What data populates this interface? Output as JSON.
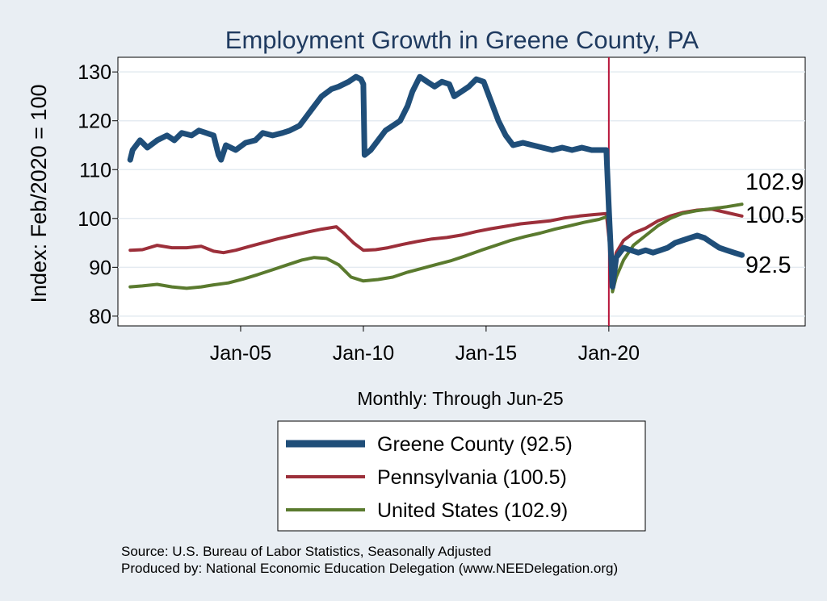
{
  "chart_data": {
    "type": "line",
    "title": "Employment Growth in Greene  County, PA",
    "ylabel": "Index: Feb/2020 = 100",
    "xlabel": "Monthly: Through Jun-25",
    "ylim": [
      78,
      133
    ],
    "yticks": [
      80,
      90,
      100,
      110,
      120,
      130
    ],
    "xlim": [
      2000.0,
      2028.0
    ],
    "xticks": [
      {
        "value": 2005.0,
        "label": "Jan-05"
      },
      {
        "value": 2010.0,
        "label": "Jan-10"
      },
      {
        "value": 2015.0,
        "label": "Jan-15"
      },
      {
        "value": 2020.0,
        "label": "Jan-20"
      }
    ],
    "reference_line_x": 2020.0,
    "reference_line_color": "#b8153a",
    "series": [
      {
        "name": "Greene  County (92.5)",
        "color": "#1f4e79",
        "width": 7,
        "end_label": "92.5",
        "points": [
          [
            2000.5,
            112
          ],
          [
            2000.6,
            114
          ],
          [
            2000.9,
            116
          ],
          [
            2001.2,
            114.5
          ],
          [
            2001.6,
            116
          ],
          [
            2002.0,
            117
          ],
          [
            2002.3,
            116
          ],
          [
            2002.6,
            117.5
          ],
          [
            2003.0,
            117
          ],
          [
            2003.3,
            118
          ],
          [
            2003.6,
            117.5
          ],
          [
            2003.9,
            117
          ],
          [
            2004.1,
            113
          ],
          [
            2004.2,
            112
          ],
          [
            2004.4,
            115
          ],
          [
            2004.8,
            114
          ],
          [
            2005.2,
            115.5
          ],
          [
            2005.6,
            116
          ],
          [
            2005.9,
            117.5
          ],
          [
            2006.3,
            117
          ],
          [
            2006.7,
            117.5
          ],
          [
            2007.0,
            118
          ],
          [
            2007.4,
            119
          ],
          [
            2007.7,
            121
          ],
          [
            2008.0,
            123
          ],
          [
            2008.3,
            125
          ],
          [
            2008.7,
            126.5
          ],
          [
            2009.0,
            127
          ],
          [
            2009.4,
            128
          ],
          [
            2009.7,
            129
          ],
          [
            2009.9,
            128.5
          ],
          [
            2010.0,
            127.5
          ],
          [
            2010.05,
            113
          ],
          [
            2010.3,
            114
          ],
          [
            2010.6,
            116
          ],
          [
            2010.9,
            118
          ],
          [
            2011.2,
            119
          ],
          [
            2011.5,
            120
          ],
          [
            2011.8,
            123
          ],
          [
            2012.0,
            126
          ],
          [
            2012.3,
            129
          ],
          [
            2012.6,
            128
          ],
          [
            2012.9,
            127
          ],
          [
            2013.2,
            128
          ],
          [
            2013.5,
            127.5
          ],
          [
            2013.7,
            125
          ],
          [
            2014.0,
            126
          ],
          [
            2014.3,
            127
          ],
          [
            2014.6,
            128.5
          ],
          [
            2014.9,
            128
          ],
          [
            2015.2,
            124
          ],
          [
            2015.5,
            120
          ],
          [
            2015.8,
            117
          ],
          [
            2016.1,
            115
          ],
          [
            2016.5,
            115.5
          ],
          [
            2016.9,
            115
          ],
          [
            2017.3,
            114.5
          ],
          [
            2017.7,
            114
          ],
          [
            2018.1,
            114.5
          ],
          [
            2018.5,
            114
          ],
          [
            2018.9,
            114.5
          ],
          [
            2019.3,
            114
          ],
          [
            2019.7,
            114
          ],
          [
            2019.9,
            114
          ],
          [
            2020.0,
            102
          ],
          [
            2020.15,
            86
          ],
          [
            2020.3,
            92
          ],
          [
            2020.6,
            94
          ],
          [
            2020.9,
            93.5
          ],
          [
            2021.2,
            93
          ],
          [
            2021.5,
            93.5
          ],
          [
            2021.8,
            93
          ],
          [
            2022.1,
            93.5
          ],
          [
            2022.4,
            94
          ],
          [
            2022.7,
            95
          ],
          [
            2023.0,
            95.5
          ],
          [
            2023.3,
            96
          ],
          [
            2023.6,
            96.5
          ],
          [
            2023.9,
            96
          ],
          [
            2024.2,
            95
          ],
          [
            2024.5,
            94
          ],
          [
            2024.8,
            93.5
          ],
          [
            2025.1,
            93
          ],
          [
            2025.42,
            92.5
          ]
        ]
      },
      {
        "name": "Pennsylvania (100.5)",
        "color": "#9c2f3a",
        "width": 4,
        "end_label": "100.5",
        "points": [
          [
            2000.5,
            93.5
          ],
          [
            2001.0,
            93.6
          ],
          [
            2001.6,
            94.5
          ],
          [
            2002.2,
            94
          ],
          [
            2002.8,
            94
          ],
          [
            2003.4,
            94.3
          ],
          [
            2003.9,
            93.3
          ],
          [
            2004.3,
            93
          ],
          [
            2004.8,
            93.5
          ],
          [
            2005.3,
            94.2
          ],
          [
            2005.9,
            95
          ],
          [
            2006.5,
            95.8
          ],
          [
            2007.1,
            96.5
          ],
          [
            2007.7,
            97.2
          ],
          [
            2008.3,
            97.8
          ],
          [
            2008.9,
            98.3
          ],
          [
            2009.2,
            97
          ],
          [
            2009.6,
            95
          ],
          [
            2010.0,
            93.5
          ],
          [
            2010.5,
            93.6
          ],
          [
            2011.0,
            94
          ],
          [
            2011.6,
            94.7
          ],
          [
            2012.2,
            95.3
          ],
          [
            2012.8,
            95.8
          ],
          [
            2013.4,
            96.1
          ],
          [
            2014.0,
            96.6
          ],
          [
            2014.6,
            97.3
          ],
          [
            2015.2,
            97.9
          ],
          [
            2015.8,
            98.4
          ],
          [
            2016.4,
            98.9
          ],
          [
            2017.0,
            99.2
          ],
          [
            2017.6,
            99.5
          ],
          [
            2018.2,
            100.1
          ],
          [
            2018.8,
            100.5
          ],
          [
            2019.4,
            100.8
          ],
          [
            2019.9,
            101
          ],
          [
            2020.15,
            89
          ],
          [
            2020.3,
            93
          ],
          [
            2020.6,
            95.5
          ],
          [
            2021.0,
            97
          ],
          [
            2021.5,
            98
          ],
          [
            2022.0,
            99.5
          ],
          [
            2022.5,
            100.5
          ],
          [
            2023.0,
            101.2
          ],
          [
            2023.6,
            101.7
          ],
          [
            2024.2,
            101.9
          ],
          [
            2024.8,
            101.2
          ],
          [
            2025.42,
            100.5
          ]
        ]
      },
      {
        "name": "United States (102.9)",
        "color": "#5a7a2e",
        "width": 4,
        "end_label": "102.9",
        "points": [
          [
            2000.5,
            86
          ],
          [
            2001.0,
            86.2
          ],
          [
            2001.6,
            86.5
          ],
          [
            2002.2,
            86
          ],
          [
            2002.8,
            85.7
          ],
          [
            2003.4,
            86
          ],
          [
            2003.9,
            86.4
          ],
          [
            2004.5,
            86.8
          ],
          [
            2005.1,
            87.6
          ],
          [
            2005.7,
            88.5
          ],
          [
            2006.3,
            89.5
          ],
          [
            2006.9,
            90.5
          ],
          [
            2007.5,
            91.5
          ],
          [
            2008.0,
            92
          ],
          [
            2008.5,
            91.8
          ],
          [
            2009.0,
            90.5
          ],
          [
            2009.5,
            88
          ],
          [
            2010.0,
            87.2
          ],
          [
            2010.6,
            87.5
          ],
          [
            2011.2,
            88
          ],
          [
            2011.8,
            89
          ],
          [
            2012.4,
            89.8
          ],
          [
            2013.0,
            90.6
          ],
          [
            2013.6,
            91.4
          ],
          [
            2014.2,
            92.4
          ],
          [
            2014.8,
            93.5
          ],
          [
            2015.4,
            94.5
          ],
          [
            2016.0,
            95.5
          ],
          [
            2016.6,
            96.3
          ],
          [
            2017.2,
            97
          ],
          [
            2017.8,
            97.8
          ],
          [
            2018.4,
            98.5
          ],
          [
            2019.0,
            99.2
          ],
          [
            2019.6,
            99.8
          ],
          [
            2020.0,
            100.5
          ],
          [
            2020.15,
            85
          ],
          [
            2020.3,
            88
          ],
          [
            2020.6,
            91.5
          ],
          [
            2021.0,
            94.5
          ],
          [
            2021.5,
            96.5
          ],
          [
            2022.0,
            98.5
          ],
          [
            2022.5,
            100
          ],
          [
            2023.0,
            101
          ],
          [
            2023.6,
            101.6
          ],
          [
            2024.2,
            102
          ],
          [
            2024.8,
            102.4
          ],
          [
            2025.42,
            102.9
          ]
        ]
      }
    ],
    "legend": [
      {
        "label": "Greene  County (92.5)",
        "color": "#1f4e79",
        "width": 9
      },
      {
        "label": "Pennsylvania (100.5)",
        "color": "#9c2f3a",
        "width": 4
      },
      {
        "label": "United States (102.9)",
        "color": "#5a7a2e",
        "width": 4
      }
    ],
    "legend_position": "bottom"
  },
  "footer": {
    "source": "Source: U.S. Bureau of Labor Statistics, Seasonally Adjusted",
    "produced": "Produced by: National Economic Education Delegation (www.NEEDelegation.org)"
  }
}
